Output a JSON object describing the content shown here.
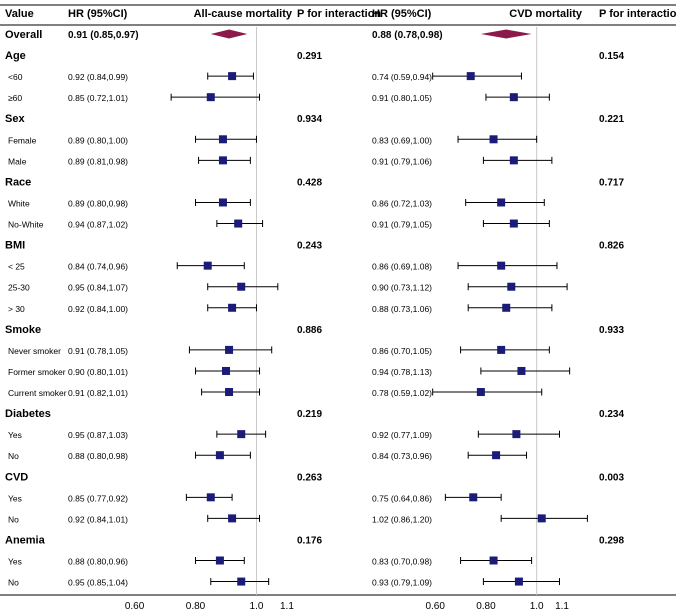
{
  "chart_data": {
    "type": "forest",
    "headers": {
      "value": "Value",
      "hr_left": "HR (95%CI)",
      "title_left": "All-cause mortality",
      "p_left": "P for interaction",
      "hr_right": "HR (95%CI)",
      "title_right": "CVD mortality",
      "p_right": "P for interaction"
    },
    "axis": {
      "left": {
        "ticks": [
          0.6,
          0.8,
          1.0,
          1.1
        ],
        "tick_labels": [
          "0.60",
          "0.80",
          "1.0",
          "1.1"
        ],
        "xlim": [
          0.585,
          1.11
        ],
        "reference": 1.0
      },
      "right": {
        "ticks": [
          0.6,
          0.8,
          1.0,
          1.1
        ],
        "tick_labels": [
          "0.60",
          "0.80",
          "1.0",
          "1.1"
        ],
        "xlim": [
          0.54,
          1.23
        ],
        "reference": 1.0
      }
    },
    "colors": {
      "diamond": "#8b1a4a",
      "square": "#1b1b78",
      "reference_line": "#c8c8c8",
      "ci_line": "#000000"
    },
    "rows": [
      {
        "kind": "overall",
        "label": "Overall",
        "left": {
          "text": "0.91 (0.85,0.97)",
          "hr": 0.91,
          "lo": 0.85,
          "hi": 0.97
        },
        "right": {
          "text": "0.88 (0.78,0.98)",
          "hr": 0.88,
          "lo": 0.78,
          "hi": 0.98
        }
      },
      {
        "kind": "group",
        "label": "Age",
        "p_left": "0.291",
        "p_right": "0.154"
      },
      {
        "kind": "sub",
        "label": "<60",
        "left": {
          "text": "0.92 (0.84,0.99)",
          "hr": 0.92,
          "lo": 0.84,
          "hi": 0.99
        },
        "right": {
          "text": "0.74 (0.59,0.94)",
          "hr": 0.74,
          "lo": 0.59,
          "hi": 0.94
        }
      },
      {
        "kind": "sub",
        "label": "≥60",
        "left": {
          "text": "0.85 (0.72,1.01)",
          "hr": 0.85,
          "lo": 0.72,
          "hi": 1.01
        },
        "right": {
          "text": "0.91 (0.80,1.05)",
          "hr": 0.91,
          "lo": 0.8,
          "hi": 1.05
        }
      },
      {
        "kind": "group",
        "label": "Sex",
        "p_left": "0.934",
        "p_right": "0.221"
      },
      {
        "kind": "sub",
        "label": "Female",
        "left": {
          "text": "0.89 (0.80,1.00)",
          "hr": 0.89,
          "lo": 0.8,
          "hi": 1.0
        },
        "right": {
          "text": "0.83 (0.69,1.00)",
          "hr": 0.83,
          "lo": 0.69,
          "hi": 1.0
        }
      },
      {
        "kind": "sub",
        "label": "Male",
        "left": {
          "text": "0.89 (0.81,0.98)",
          "hr": 0.89,
          "lo": 0.81,
          "hi": 0.98
        },
        "right": {
          "text": "0.91 (0.79,1.06)",
          "hr": 0.91,
          "lo": 0.79,
          "hi": 1.06
        }
      },
      {
        "kind": "group",
        "label": "Race",
        "p_left": "0.428",
        "p_right": "0.717"
      },
      {
        "kind": "sub",
        "label": "White",
        "left": {
          "text": "0.89 (0.80,0.98)",
          "hr": 0.89,
          "lo": 0.8,
          "hi": 0.98
        },
        "right": {
          "text": "0.86 (0.72,1.03)",
          "hr": 0.86,
          "lo": 0.72,
          "hi": 1.03
        }
      },
      {
        "kind": "sub",
        "label": "No-White",
        "left": {
          "text": "0.94 (0.87,1.02)",
          "hr": 0.94,
          "lo": 0.87,
          "hi": 1.02
        },
        "right": {
          "text": "0.91 (0.79,1.05)",
          "hr": 0.91,
          "lo": 0.79,
          "hi": 1.05
        }
      },
      {
        "kind": "group",
        "label": "BMI",
        "p_left": "0.243",
        "p_right": "0.826"
      },
      {
        "kind": "sub",
        "label": "< 25",
        "left": {
          "text": "0.84 (0.74,0.96)",
          "hr": 0.84,
          "lo": 0.74,
          "hi": 0.96
        },
        "right": {
          "text": "0.86 (0.69,1.08)",
          "hr": 0.86,
          "lo": 0.69,
          "hi": 1.08
        }
      },
      {
        "kind": "sub",
        "label": "25-30",
        "left": {
          "text": "0.95 (0.84,1.07)",
          "hr": 0.95,
          "lo": 0.84,
          "hi": 1.07
        },
        "right": {
          "text": "0.90 (0.73,1.12)",
          "hr": 0.9,
          "lo": 0.73,
          "hi": 1.12
        }
      },
      {
        "kind": "sub",
        "label": "> 30",
        "left": {
          "text": "0.92 (0.84,1.00)",
          "hr": 0.92,
          "lo": 0.84,
          "hi": 1.0
        },
        "right": {
          "text": "0.88 (0.73,1.06)",
          "hr": 0.88,
          "lo": 0.73,
          "hi": 1.06
        }
      },
      {
        "kind": "group",
        "label": "Smoke",
        "p_left": "0.886",
        "p_right": "0.933"
      },
      {
        "kind": "sub",
        "label": "Never smoker",
        "left": {
          "text": "0.91 (0.78,1.05)",
          "hr": 0.91,
          "lo": 0.78,
          "hi": 1.05
        },
        "right": {
          "text": "0.86 (0.70,1.05)",
          "hr": 0.86,
          "lo": 0.7,
          "hi": 1.05
        }
      },
      {
        "kind": "sub",
        "label": "Former smoker",
        "left": {
          "text": "0.90 (0.80,1.01)",
          "hr": 0.9,
          "lo": 0.8,
          "hi": 1.01
        },
        "right": {
          "text": "0.94 (0.78,1.13)",
          "hr": 0.94,
          "lo": 0.78,
          "hi": 1.13
        }
      },
      {
        "kind": "sub",
        "label": "Current smoker",
        "left": {
          "text": "0.91 (0.82,1.01)",
          "hr": 0.91,
          "lo": 0.82,
          "hi": 1.01
        },
        "right": {
          "text": "0.78 (0.59,1.02)",
          "hr": 0.78,
          "lo": 0.59,
          "hi": 1.02
        }
      },
      {
        "kind": "group",
        "label": "Diabetes",
        "p_left": "0.219",
        "p_right": "0.234"
      },
      {
        "kind": "sub",
        "label": "Yes",
        "left": {
          "text": "0.95 (0.87,1.03)",
          "hr": 0.95,
          "lo": 0.87,
          "hi": 1.03
        },
        "right": {
          "text": "0.92 (0.77,1.09)",
          "hr": 0.92,
          "lo": 0.77,
          "hi": 1.09
        }
      },
      {
        "kind": "sub",
        "label": "No",
        "left": {
          "text": "0.88 (0.80,0.98)",
          "hr": 0.88,
          "lo": 0.8,
          "hi": 0.98
        },
        "right": {
          "text": "0.84 (0.73,0.96)",
          "hr": 0.84,
          "lo": 0.73,
          "hi": 0.96
        }
      },
      {
        "kind": "group",
        "label": "CVD",
        "p_left": "0.263",
        "p_right": "0.003"
      },
      {
        "kind": "sub",
        "label": "Yes",
        "left": {
          "text": "0.85 (0.77,0.92)",
          "hr": 0.85,
          "lo": 0.77,
          "hi": 0.92
        },
        "right": {
          "text": "0.75 (0.64,0.86)",
          "hr": 0.75,
          "lo": 0.64,
          "hi": 0.86
        }
      },
      {
        "kind": "sub",
        "label": "No",
        "left": {
          "text": "0.92 (0.84,1.01)",
          "hr": 0.92,
          "lo": 0.84,
          "hi": 1.01
        },
        "right": {
          "text": "1.02 (0.86,1.20)",
          "hr": 1.02,
          "lo": 0.86,
          "hi": 1.2
        }
      },
      {
        "kind": "group",
        "label": "Anemia",
        "p_left": "0.176",
        "p_right": "0.298"
      },
      {
        "kind": "sub",
        "label": "Yes",
        "left": {
          "text": "0.88 (0.80,0.96)",
          "hr": 0.88,
          "lo": 0.8,
          "hi": 0.96
        },
        "right": {
          "text": "0.83 (0.70,0.98)",
          "hr": 0.83,
          "lo": 0.7,
          "hi": 0.98
        }
      },
      {
        "kind": "sub",
        "label": "No",
        "left": {
          "text": "0.95 (0.85,1.04)",
          "hr": 0.95,
          "lo": 0.85,
          "hi": 1.04
        },
        "right": {
          "text": "0.93 (0.79,1.09)",
          "hr": 0.93,
          "lo": 0.79,
          "hi": 1.09
        }
      }
    ]
  }
}
